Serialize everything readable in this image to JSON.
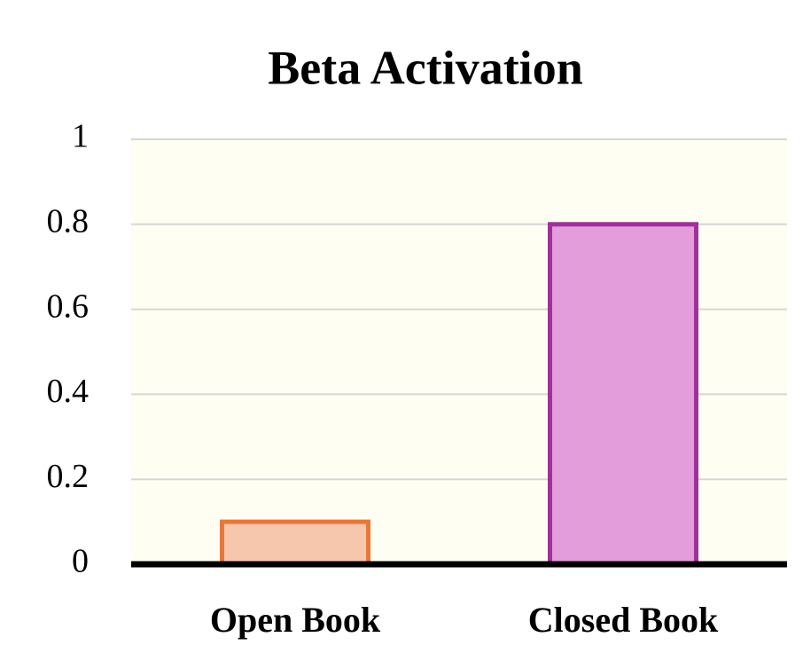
{
  "chart_data": {
    "type": "bar",
    "title": "Beta Activation",
    "categories": [
      "Open Book",
      "Closed Book"
    ],
    "values": [
      0.1,
      0.8
    ],
    "colors": [
      "#f6c6ad",
      "#e39ddb"
    ],
    "edge_colors": [
      "#e8773a",
      "#a0309a"
    ],
    "background": "#fffef2",
    "ylim": [
      0,
      1
    ],
    "yticks": [
      0,
      0.2,
      0.4,
      0.6,
      0.8,
      1
    ],
    "grid": true
  }
}
